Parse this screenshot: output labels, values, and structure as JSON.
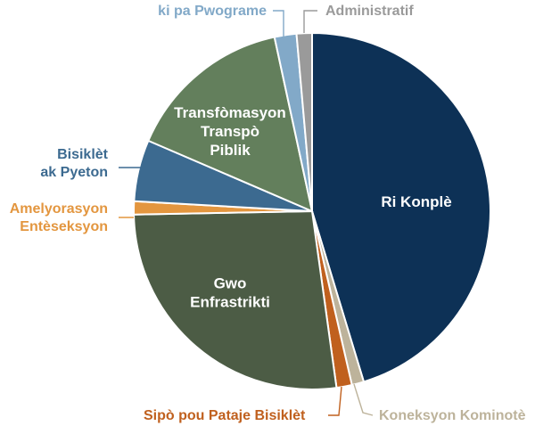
{
  "chart_data": {
    "type": "pie",
    "title": "",
    "slices": [
      {
        "name": "Ri Konplè",
        "label_lines": [
          "Ri Konplè"
        ],
        "value": 45.5,
        "color": "#0d3156",
        "label_mode": "inside"
      },
      {
        "name": "Koneksyon Kominotè",
        "label_lines": [
          "Koneksyon Kominotè"
        ],
        "value": 1.1,
        "color": "#bdb39b",
        "label_mode": "outside"
      },
      {
        "name": "Sipò pou Pataje Bisiklèt",
        "label_lines": [
          "Sipò pou Pataje Bisiklèt"
        ],
        "value": 1.4,
        "color": "#c0601e",
        "label_mode": "outside"
      },
      {
        "name": "Gwo Enfrastrikti",
        "label_lines": [
          "Gwo",
          "Enfrastrikti"
        ],
        "value": 27.0,
        "color": "#4c5c45",
        "label_mode": "inside"
      },
      {
        "name": "Amelyorasyon Entèseksyon",
        "label_lines": [
          "Amelyorasyon",
          "Entèseksyon"
        ],
        "value": 1.2,
        "color": "#e3963f",
        "label_mode": "outside"
      },
      {
        "name": "Bisiklèt ak Pyeton",
        "label_lines": [
          "Bisiklèt",
          "ak Pyeton"
        ],
        "value": 5.6,
        "color": "#3c6a90",
        "label_mode": "outside"
      },
      {
        "name": "Transfòmasyon Transpò Piblik",
        "label_lines": [
          "Transfòmasyon",
          "Transpò",
          "Piblik"
        ],
        "value": 15.2,
        "color": "#637f5c",
        "label_mode": "inside"
      },
      {
        "name": "ki pa Pwograme",
        "label_lines": [
          "ki pa Pwograme"
        ],
        "value": 2.0,
        "color": "#82a9c8",
        "label_mode": "outside"
      },
      {
        "name": "Administratif",
        "label_lines": [
          "Administratif"
        ],
        "value": 1.4,
        "color": "#9a9a9a",
        "label_mode": "outside"
      }
    ],
    "legend": "none"
  }
}
